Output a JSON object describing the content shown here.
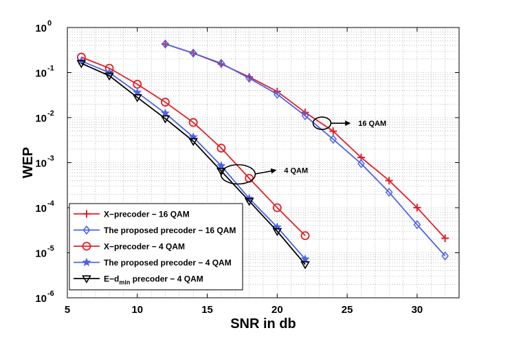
{
  "chart_data": {
    "type": "line",
    "xlabel": "SNR in db",
    "ylabel": "WEP",
    "xlim": [
      5,
      33
    ],
    "ylim_log10": [
      -6,
      0
    ],
    "yscale": "log",
    "grid": true,
    "legend_position": "bottom-left",
    "x_ticks": [
      5,
      10,
      15,
      20,
      25,
      30
    ],
    "y_tick_exponents": [
      "0",
      "-1",
      "-2",
      "-3",
      "-4",
      "-5",
      "-6"
    ],
    "y_tick_base": "10",
    "series": [
      {
        "name": "X−precoder − 16 QAM",
        "color": "#e31e24",
        "marker": "plus",
        "x": [
          12,
          14,
          16,
          18,
          20,
          22,
          24,
          26,
          28,
          30,
          32
        ],
        "y": [
          0.43,
          0.27,
          0.155,
          0.08,
          0.038,
          0.013,
          0.005,
          0.0013,
          0.0004,
          0.0001,
          2.1e-05
        ]
      },
      {
        "name": "The proposed precoder − 16 QAM",
        "color": "#4a62e8",
        "marker": "diamond",
        "x": [
          12,
          14,
          16,
          18,
          20,
          22,
          24,
          26,
          28,
          30,
          32
        ],
        "y": [
          0.43,
          0.27,
          0.16,
          0.075,
          0.033,
          0.011,
          0.0033,
          0.00095,
          0.00022,
          4.2e-05,
          8.5e-06
        ]
      },
      {
        "name": "X−precoder − 4 QAM",
        "color": "#e31e24",
        "marker": "circle",
        "x": [
          6,
          8,
          10,
          12,
          14,
          16,
          18,
          20,
          22
        ],
        "y": [
          0.22,
          0.125,
          0.055,
          0.022,
          0.0078,
          0.0021,
          0.00045,
          0.0001,
          2.4e-05
        ]
      },
      {
        "name": "The proposed precoder − 4 QAM",
        "color": "#4a62e8",
        "marker": "star",
        "x": [
          6,
          8,
          10,
          12,
          14,
          16,
          18,
          20,
          22
        ],
        "y": [
          0.18,
          0.1,
          0.036,
          0.0125,
          0.0037,
          0.00085,
          0.00016,
          3.7e-05,
          7.2e-06
        ]
      },
      {
        "name": "E−d",
        "name_subscript": "min",
        "name_suffix": " precoder − 4 QAM",
        "color": "#000000",
        "marker": "triangle-down",
        "x": [
          6,
          8,
          10,
          12,
          14,
          16,
          18,
          20,
          22
        ],
        "y": [
          0.16,
          0.085,
          0.028,
          0.0095,
          0.003,
          0.00065,
          0.00014,
          3e-05,
          5.5e-06
        ]
      }
    ],
    "annotations": [
      {
        "text": "16 QAM",
        "ellipse_center": [
          23.2,
          0.0075
        ],
        "arrow_to": [
          25.2,
          0.0075
        ]
      },
      {
        "text": "4 QAM",
        "ellipse_center": [
          17.2,
          0.00055
        ],
        "arrow_to": [
          19.9,
          0.00068
        ]
      }
    ]
  }
}
